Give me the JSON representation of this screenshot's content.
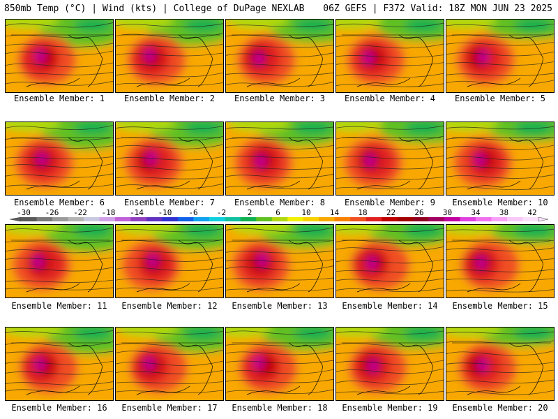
{
  "header": {
    "left": "850mb Temp (°C) | Wind (kts) | College of DuPage NEXLAB",
    "right": "06Z GEFS | F372 Valid: 18Z MON JUN 23 2025"
  },
  "members": [
    {
      "label": "Ensemble Member: 1"
    },
    {
      "label": "Ensemble Member: 2"
    },
    {
      "label": "Ensemble Member: 3"
    },
    {
      "label": "Ensemble Member: 4"
    },
    {
      "label": "Ensemble Member: 5"
    },
    {
      "label": "Ensemble Member: 6"
    },
    {
      "label": "Ensemble Member: 7"
    },
    {
      "label": "Ensemble Member: 8"
    },
    {
      "label": "Ensemble Member: 9"
    },
    {
      "label": "Ensemble Member: 10"
    },
    {
      "label": "Ensemble Member: 11"
    },
    {
      "label": "Ensemble Member: 12"
    },
    {
      "label": "Ensemble Member: 13"
    },
    {
      "label": "Ensemble Member: 14"
    },
    {
      "label": "Ensemble Member: 15"
    },
    {
      "label": "Ensemble Member: 16"
    },
    {
      "label": "Ensemble Member: 17"
    },
    {
      "label": "Ensemble Member: 18"
    },
    {
      "label": "Ensemble Member: 19"
    },
    {
      "label": "Ensemble Member: 20"
    }
  ],
  "colorbar": {
    "ticks": [
      "-30",
      "-26",
      "-22",
      "-18",
      "-14",
      "-10",
      "-6",
      "-2",
      "2",
      "6",
      "10",
      "14",
      "18",
      "22",
      "26",
      "30",
      "34",
      "38",
      "42"
    ],
    "colors": [
      "#5a5a5a",
      "#7a7a7a",
      "#9a9a9a",
      "#b4b4b4",
      "#c8c8e0",
      "#d0a0e8",
      "#c060d8",
      "#9040c0",
      "#6030c0",
      "#3030d0",
      "#1060e8",
      "#10a0f0",
      "#10d0e0",
      "#10c0a0",
      "#10b050",
      "#60c020",
      "#b0d810",
      "#f0f000",
      "#f8d000",
      "#f8a800",
      "#f88000",
      "#f05020",
      "#e02020",
      "#c00000",
      "#a00000",
      "#900020",
      "#a00060",
      "#c000a0",
      "#e040e0",
      "#f070f0",
      "#f8a0f8",
      "#f8c8f8",
      "#fae0fa"
    ]
  }
}
